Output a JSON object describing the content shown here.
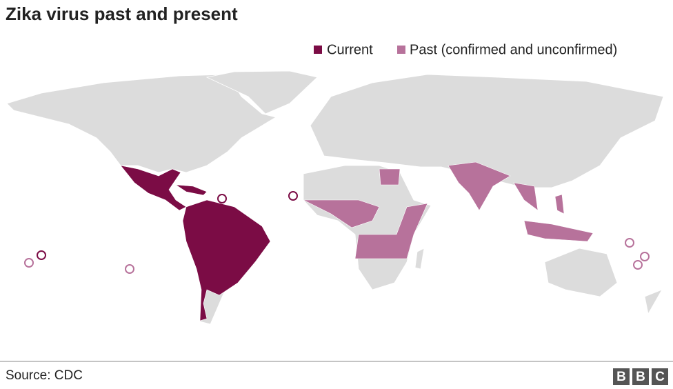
{
  "title": "Zika virus past and present",
  "legend": [
    {
      "label": "Current",
      "color": "#7b0c45"
    },
    {
      "label": "Past (confirmed and unconfirmed)",
      "color": "#b7729b"
    }
  ],
  "source": "Source: CDC",
  "logo": [
    "B",
    "B",
    "C"
  ]
}
